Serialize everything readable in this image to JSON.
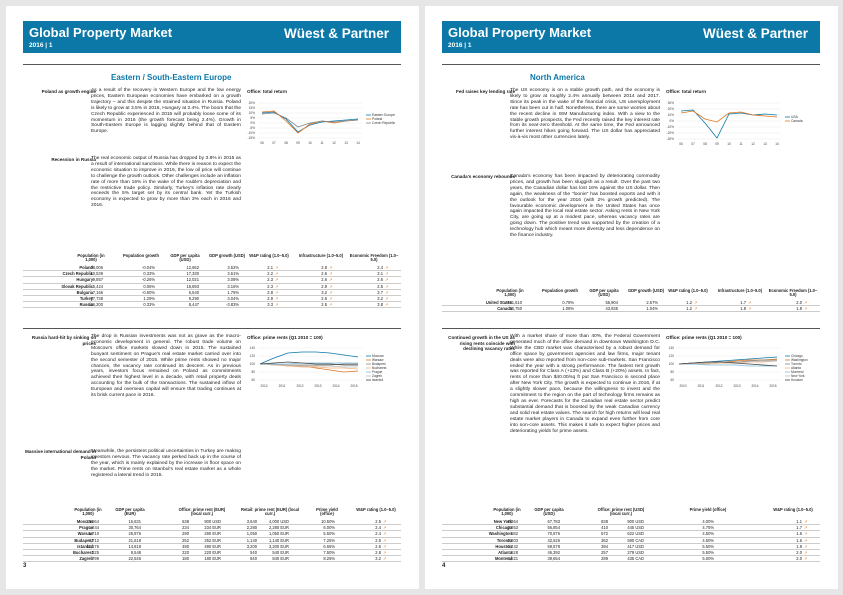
{
  "header": {
    "title": "Global Property Market",
    "edition": "2016 | 1",
    "brand": "Wüest & Partner"
  },
  "p3": {
    "section": "Eastern / South-Eastern Europe",
    "s1": {
      "side": "Poland as growth engine",
      "text": "As a result of the recovery in Western Europe and the low energy prices, Eastern European economies have embarked on a growth trajectory – and this despite the strained situation in Russia. Poland is likely to grow at 3.5% in 2016, Hungary at 2.4%. The boom that the Czech Republic experienced in 2015 will probably loose some of its momentum in 2016 (the growth forecast being 2.4%). Growth in South-Eastern Europe is lagging slightly behind that of Eastern Europe."
    },
    "s2": {
      "side": "Recession in Russia",
      "text": "The real economic output of Russia has dropped by 3.8% in 2015 as a result of international sanctions. While there is reason to expect the economic situation to improve in 2016, the low oil price will continue to challenge the growth outlook. Other challenges include an inflation rate of more than 15% in the wake of the rouble's depreciation and the restrictive trade policy. Similarly, Turkey's inflation rate clearly exceeds the 5% target set by its central bank. Yet the Turkish economy is expected to grow by more than 3% each in 2016 and 2016."
    },
    "chart1": {
      "title": "Office: total return",
      "yticks": [
        "20%",
        "15%",
        "10%",
        "5%",
        "0%",
        "-5%",
        "-10%",
        "-15%"
      ],
      "xticks": [
        "06",
        "07",
        "08",
        "09",
        "10",
        "11",
        "12",
        "13",
        "14"
      ],
      "legend": [
        "Eastern Europe",
        "Poland",
        "Czech Republic"
      ]
    },
    "table1": {
      "headers": [
        "Population (in 1,000)",
        "Population growth",
        "GDP per capita (USD)",
        "GDP growth (USD)",
        "W&P rating (1.0–5.0)",
        "Infrastructure (1.0–5.0)",
        "Economic Freedom (1.0–5.0)"
      ],
      "rows": [
        [
          "Poland",
          "38,006",
          "-0.04%",
          "12,662",
          "3.52%",
          "2.1",
          "2.8",
          "2.4"
        ],
        [
          "Czech Republic",
          "10,539",
          "0.33%",
          "17,330",
          "3.61%",
          "2.2",
          "2.6",
          "3.1"
        ],
        [
          "Hungary",
          "9,857",
          "-0.26%",
          "12,021",
          "3.08%",
          "2.3",
          "2.6",
          "2.6"
        ],
        [
          "Slovak Republic",
          "5,424",
          "0.06%",
          "15,893",
          "3.16%",
          "2.3",
          "2.9",
          "2.5"
        ],
        [
          "Bulgaria",
          "7,166",
          "-0.60%",
          "6,540",
          "1.75%",
          "2.8",
          "3.2",
          "3.7"
        ],
        [
          "Turkey",
          "77,738",
          "1.29%",
          "9,290",
          "3.04%",
          "2.9",
          "2.6",
          "3.2"
        ],
        [
          "Russia",
          "146,200",
          "0.33%",
          "8,447",
          "-3.83%",
          "3.3",
          "2.5",
          "3.8"
        ]
      ]
    },
    "s3": {
      "side": "Russia hard-hit by sinking oil prices",
      "text": "The drop in Russian investments was not as grave as the macro-economic development in general. The robust trade volume on Moscow's office markets slowed down in 2015. The sustained buoyant sentiment on Prague's real estate market carried over into the second semester of 2015. While prime rents showed no major chances, the vacancy rate continued its descent. As in previous years, investors focus remained on Poland as commitments achieved their highest level in a decade, with retail property deals accounting for the bulk of the transactions. The sustained inflow of European and overseas capital will ensure that trading continues at its brisk current pace in 2016."
    },
    "s4": {
      "side": "Massive international demand in Poland",
      "text": "Meanwhile, the persistent political uncertainties in Turkey are making investors nervous. The vacancy rate perked back up in the course of the year, which is mainly explained by the increase in floor space on the market. Prime rents on Istanbul's real estate market as a whole registered a lateral trend in 2015."
    },
    "chart2": {
      "title": "Office: prime rents (Q1 2010 = 100)",
      "yticks": [
        "140",
        "120",
        "100",
        "80",
        "60"
      ],
      "xticks": [
        "2010",
        "2011",
        "2012",
        "2013",
        "2014",
        "2015"
      ],
      "legend": [
        "Moscow",
        "Warsaw",
        "Budapest",
        "Bucharest",
        "Prague",
        "Zagreb",
        "Istanbul"
      ]
    },
    "table2": {
      "headers": [
        "Population (in 1,000)",
        "GDP per capita (EUR)",
        "Office: prime rent (EUR) (local curr.)",
        "Retail: prime rent (EUR) (local curr.)",
        "Prime yield (office)",
        "W&P rating (1.0–5.0)"
      ],
      "rows": [
        [
          "Moscow",
          "10,564",
          "16,631",
          "638",
          "900 USD",
          "3,640",
          "4,000 USD",
          "10.50%",
          "2.5"
        ],
        [
          "Prague",
          "1,244",
          "30,764",
          "234",
          "234 EUR",
          "2,280",
          "2,280 EUR",
          "6.00%",
          "2.4"
        ],
        [
          "Warsaw",
          "1,710",
          "26,876",
          "290",
          "290 EUR",
          "1,050",
          "1,050 EUR",
          "5.50%",
          "2.4"
        ],
        [
          "Budapest",
          "1,712",
          "21,618",
          "252",
          "252 EUR",
          "1,140",
          "1,140 EUR",
          "7.25%",
          "2.5"
        ],
        [
          "Istanbul",
          "12,176",
          "14,818",
          "490",
          "490 EUR",
          "3,200",
          "3,200 EUR",
          "6.65%",
          "2.6"
        ],
        [
          "Bucharest",
          "325",
          "9,548",
          "220",
          "220 EUR",
          "540",
          "540 EUR",
          "7.50%",
          "2.8"
        ],
        [
          "Zagreb",
          "799",
          "22,546",
          "180",
          "180 EUR",
          "840",
          "840 EUR",
          "8.25%",
          "3.2"
        ]
      ]
    },
    "page_number": "3"
  },
  "p4": {
    "section": "North America",
    "s1": {
      "side": "Fed raises key lending rate",
      "text": "The US economy is on a stable growth path, and the economy is likely to grow at roughly 2.4% annually between 2014 and 2017. Since its peak in the wake of the financial crisis, US unemployment rate has been cut in half. Nonetheless, there are some worries about the recent decline in ISM Manufacturing index. With a view to the stable growth prospects, the Fed recently raised the key interest rate from its near-zero threshold. At the same time, the Fed announced further interest hikes going forward. The US dollar has appreciated vis-à-vis most other currencies lately."
    },
    "s2": {
      "side": "Canada's economy rebounds",
      "text": "Canada's economy has been impacted by deteriorating commodity prices, and growth has been sluggish as a result. Over the past two years, the Canadian dollar has lost 16% against the US dollar. Then again, the weakness of the \"loonie\" has boosted exports and with it the outlook for the year 2016 (with 2% growth predicted). The favourable economic development in the United States has once again impacted the local real estate sector. Asking rents in New York City, are going up at a modest pace, whereas vacancy rates are going down. The positive trend was supported by the creation of a technology hub which meant more diversity and less dependence on the finance industry."
    },
    "chart1": {
      "title": "Office: total return",
      "yticks": [
        "30%",
        "20%",
        "10%",
        "0%",
        "-10%",
        "-20%",
        "-30%"
      ],
      "xticks": [
        "06",
        "07",
        "08",
        "09",
        "10",
        "11",
        "12",
        "13",
        "14"
      ],
      "legend": [
        "USA",
        "Canada"
      ]
    },
    "table1": {
      "headers": [
        "Population (in 1,000)",
        "Population growth",
        "GDP per capita (USD)",
        "GDP growth (USD)",
        "W&P rating (1.0–5.0)",
        "Infrastructure (1.0–5.0)",
        "Economic Freedom (1.0–5.0)"
      ],
      "rows": [
        [
          "United States",
          "321,610",
          "0.78%",
          "55,904",
          "2.57%",
          "1.2",
          "1.7",
          "2.0"
        ],
        [
          "Canada",
          "35,750",
          "1.08%",
          "43,935",
          "1.04%",
          "1.2",
          "1.8",
          "1.8"
        ]
      ]
    },
    "s3": {
      "side": "Continued growth in the US as rising rents coincide with declining vacancy rates",
      "text": "With a market share of more than 40%, the Federal Government generated much of the office demand in downtown Washington D.C. While the CBD market was characterised by a robust demand for office space by government agencies and law firms, major tenant deals were also reported from non-core sub-markets. San Francisco ended the year with a strong performance. The fastest rent growth was reported for Class A (+13%) and Class B (+20%) assets. In fact, rents of more than $40.00/sq ft put San Francisco in second place after New York City. The growth is expected to continue in 2016, if at a slightly slower pace, because the willingness to invest and the commitment to the region on the part of technology firms remains as high as ever. Forecasts for the Canadian real estate sector predict substantial demand that is boosted by the weak Canadian currency and solid real estate values. The search for high returns will lead real estate market players in Canada to expand even further from core into non-core assets. This makes it safe to expect higher prices and deteriorating yields for prime assets."
    },
    "chart2": {
      "title": "Office: prime rents (Q1 2010 = 100)",
      "yticks": [
        "140",
        "120",
        "100",
        "80",
        "60"
      ],
      "xticks": [
        "2010",
        "2011",
        "2012",
        "2013",
        "2014",
        "2015"
      ],
      "legend": [
        "Chicago",
        "Washington",
        "Toronto",
        "Atlanta",
        "Montreal",
        "New York",
        "Houston"
      ]
    },
    "table2": {
      "headers": [
        "Population (in 1,000)",
        "GDP per capita (USD)",
        "Office: prime rent (USD) (local curr.)",
        "Prime yield (office)",
        "W&P rating (1.0–5.0)"
      ],
      "rows": [
        [
          "New York",
          "8,364",
          "67,783",
          "838",
          "900 USD",
          "4.00%",
          "1.1"
        ],
        [
          "Chicago",
          "2,853",
          "56,854",
          "410",
          "445 USD",
          "4.75%",
          "1.7"
        ],
        [
          "Washington",
          "582",
          "70,876",
          "572",
          "622 USD",
          "4.50%",
          "1.6"
        ],
        [
          "Toronto",
          "2,803",
          "42,626",
          "362",
          "590 CAD",
          "4.50%",
          "1.6"
        ],
        [
          "Houston",
          "2,242",
          "59,578",
          "394",
          "417 USD",
          "5.50%",
          "1.9"
        ],
        [
          "Atlanta",
          "528",
          "46,392",
          "257",
          "279 USD",
          "5.50%",
          "2.0"
        ],
        [
          "Montreal",
          "1,621",
          "39,654",
          "289",
          "435 CAD",
          "5.00%",
          "2.0"
        ]
      ]
    },
    "page_number": "4"
  }
}
